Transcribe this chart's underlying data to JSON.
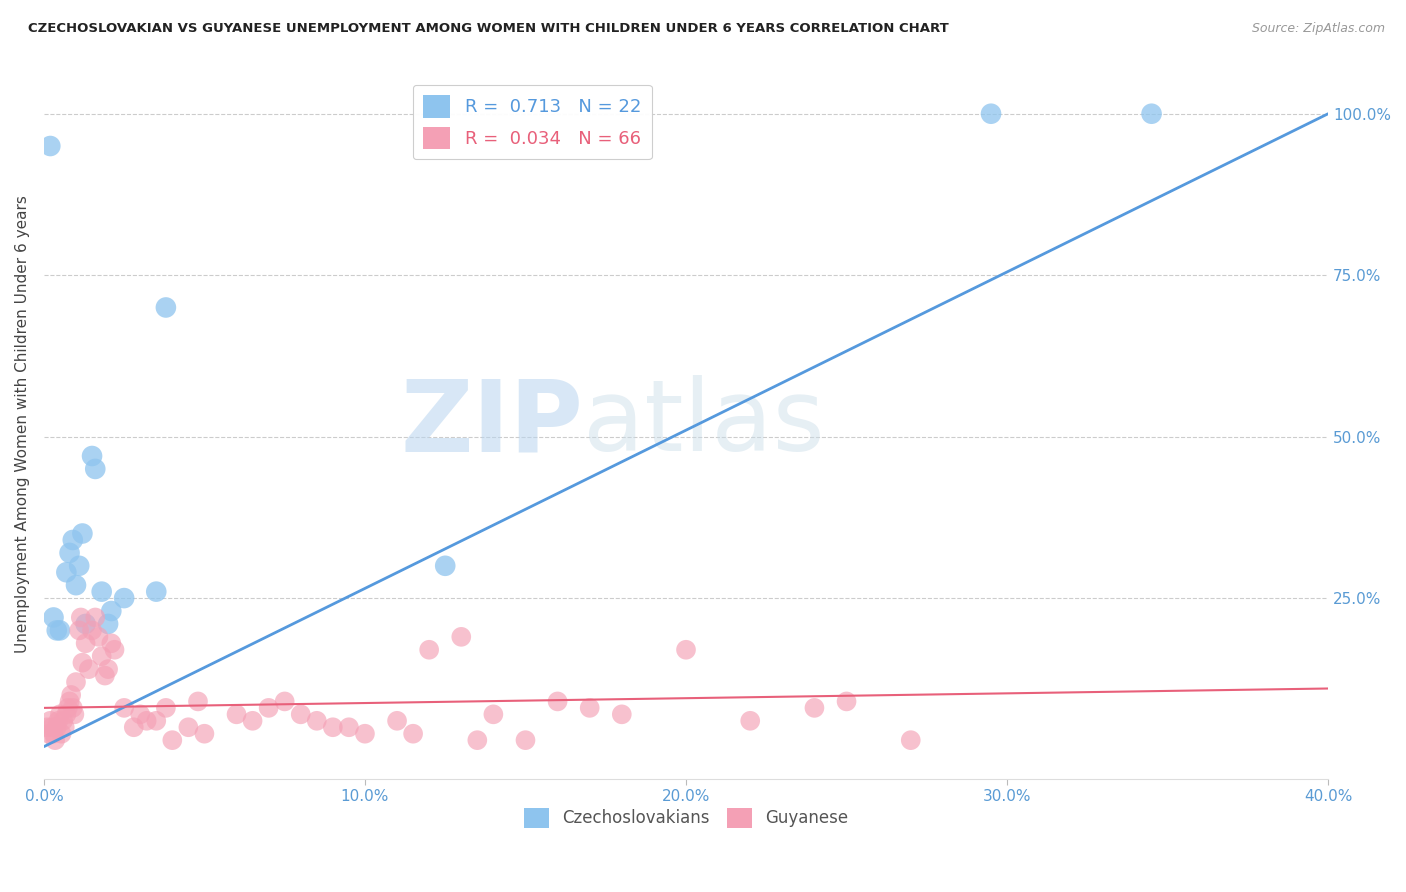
{
  "title": "CZECHOSLOVAKIAN VS GUYANESE UNEMPLOYMENT AMONG WOMEN WITH CHILDREN UNDER 6 YEARS CORRELATION CHART",
  "source": "Source: ZipAtlas.com",
  "ylabel": "Unemployment Among Women with Children Under 6 years",
  "xlabel_ticks": [
    "0.0%",
    "10.0%",
    "20.0%",
    "30.0%",
    "40.0%"
  ],
  "xlabel_values": [
    0,
    10,
    20,
    30,
    40
  ],
  "ylabel_right_ticks": [
    "100.0%",
    "75.0%",
    "50.0%",
    "25.0%"
  ],
  "ylabel_right_values": [
    100,
    75,
    50,
    25
  ],
  "xmin": 0,
  "xmax": 40,
  "ymin": -3,
  "ymax": 107,
  "czech_R": "0.713",
  "czech_N": "22",
  "guyanese_R": "0.034",
  "guyanese_N": "66",
  "czech_color": "#8ec4ee",
  "guyanese_color": "#f4a0b5",
  "czech_line_color": "#5599dd",
  "guyanese_line_color": "#e8607a",
  "background_color": "#ffffff",
  "grid_color": "#cccccc",
  "axis_color": "#5a9bd4",
  "watermark_zip": "ZIP",
  "watermark_atlas": "atlas",
  "czech_x": [
    0.2,
    0.3,
    0.5,
    0.7,
    0.8,
    0.9,
    1.0,
    1.1,
    1.2,
    1.3,
    1.5,
    1.6,
    1.8,
    2.0,
    2.1,
    2.5,
    3.5,
    3.8,
    12.5,
    29.5,
    34.5,
    0.4
  ],
  "czech_y": [
    95.0,
    22.0,
    20.0,
    29.0,
    32.0,
    34.0,
    27.0,
    30.0,
    35.0,
    21.0,
    47.0,
    45.0,
    26.0,
    21.0,
    23.0,
    25.0,
    26.0,
    70.0,
    30.0,
    100.0,
    100.0,
    20.0
  ],
  "guyanese_x": [
    0.1,
    0.15,
    0.2,
    0.25,
    0.3,
    0.35,
    0.4,
    0.45,
    0.5,
    0.55,
    0.6,
    0.65,
    0.7,
    0.75,
    0.8,
    0.85,
    0.9,
    0.95,
    1.0,
    1.1,
    1.15,
    1.2,
    1.3,
    1.4,
    1.5,
    1.6,
    1.7,
    1.8,
    1.9,
    2.0,
    2.1,
    2.2,
    2.5,
    2.8,
    3.0,
    3.5,
    4.0,
    4.5,
    5.0,
    6.0,
    7.0,
    8.0,
    9.0,
    10.0,
    11.0,
    12.0,
    13.0,
    14.0,
    15.0,
    16.0,
    17.0,
    18.0,
    20.0,
    22.0,
    24.0,
    3.2,
    3.8,
    4.8,
    6.5,
    7.5,
    8.5,
    9.5,
    11.5,
    13.5,
    25.0,
    27.0
  ],
  "guyanese_y": [
    5.0,
    4.0,
    6.0,
    5.0,
    4.0,
    3.0,
    5.0,
    6.0,
    7.0,
    4.0,
    6.0,
    5.0,
    7.0,
    8.0,
    9.0,
    10.0,
    8.0,
    7.0,
    12.0,
    20.0,
    22.0,
    15.0,
    18.0,
    14.0,
    20.0,
    22.0,
    19.0,
    16.0,
    13.0,
    14.0,
    18.0,
    17.0,
    8.0,
    5.0,
    7.0,
    6.0,
    3.0,
    5.0,
    4.0,
    7.0,
    8.0,
    7.0,
    5.0,
    4.0,
    6.0,
    17.0,
    19.0,
    7.0,
    3.0,
    9.0,
    8.0,
    7.0,
    17.0,
    6.0,
    8.0,
    6.0,
    8.0,
    9.0,
    6.0,
    9.0,
    6.0,
    5.0,
    4.0,
    3.0,
    9.0,
    3.0
  ],
  "czech_line_x": [
    0,
    40
  ],
  "czech_line_y": [
    2.0,
    100.0
  ],
  "guyanese_line_x": [
    0,
    40
  ],
  "guyanese_line_y": [
    8.0,
    11.0
  ]
}
